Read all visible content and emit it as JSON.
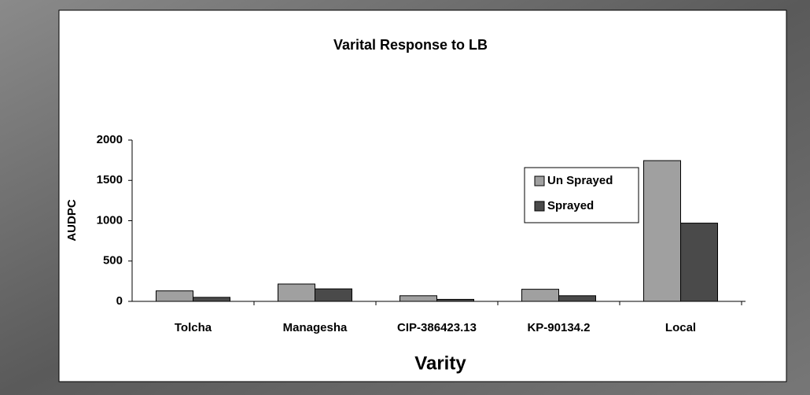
{
  "chart_data": {
    "type": "bar",
    "title": "Varital Response to LB",
    "x_label": "Varity",
    "y_label": "AUDPC",
    "categories": [
      "Tolcha",
      "Managesha",
      "CIP-386423.13",
      "KP-90134.2",
      "Local"
    ],
    "series": [
      {
        "name": "Un Sprayed",
        "color": "#a0a0a0",
        "values": [
          130,
          215,
          70,
          150,
          1745
        ]
      },
      {
        "name": "Sprayed",
        "color": "#4a4a4a",
        "values": [
          50,
          155,
          25,
          70,
          970
        ]
      }
    ],
    "ylim": [
      0,
      2000
    ],
    "yticks": [
      0,
      500,
      1000,
      1500,
      2000
    ],
    "grid": false
  }
}
